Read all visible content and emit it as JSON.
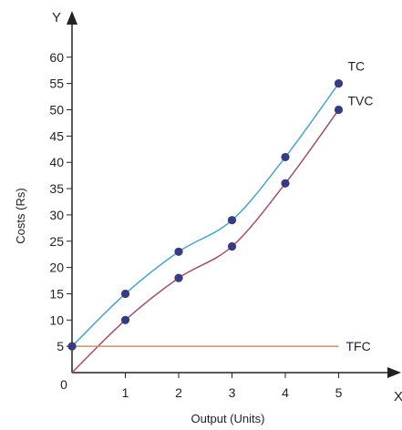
{
  "chart_data": {
    "type": "line",
    "title": "",
    "xlabel": "Output (Units)",
    "ylabel": "Costs (Rs)",
    "x_axis_letter": "X",
    "y_axis_letter": "Y",
    "origin_label": "0",
    "xlim": [
      0,
      5
    ],
    "ylim": [
      0,
      60
    ],
    "x_ticks": [
      "1",
      "2",
      "3",
      "4",
      "5"
    ],
    "y_ticks": [
      "5",
      "10",
      "15",
      "20",
      "25",
      "30",
      "35",
      "40",
      "45",
      "50",
      "55",
      "60"
    ],
    "grid": false,
    "legend": "none",
    "series": [
      {
        "name": "TC",
        "color": "#4aa3c9",
        "marker_color": "#3a3a80",
        "x": [
          0,
          1,
          2,
          3,
          4,
          5
        ],
        "y": [
          5,
          15,
          23,
          29,
          41,
          55
        ],
        "markers": true
      },
      {
        "name": "TVC",
        "color": "#a0506e",
        "marker_color": "#3a3a80",
        "x": [
          0,
          1,
          2,
          3,
          4,
          5
        ],
        "y": [
          0,
          10,
          18,
          24,
          36,
          50
        ],
        "markers_at": [
          1,
          2,
          3,
          4,
          5
        ]
      },
      {
        "name": "TFC",
        "color": "#c8936a",
        "x": [
          0,
          5
        ],
        "y": [
          5,
          5
        ],
        "markers": false
      }
    ]
  }
}
